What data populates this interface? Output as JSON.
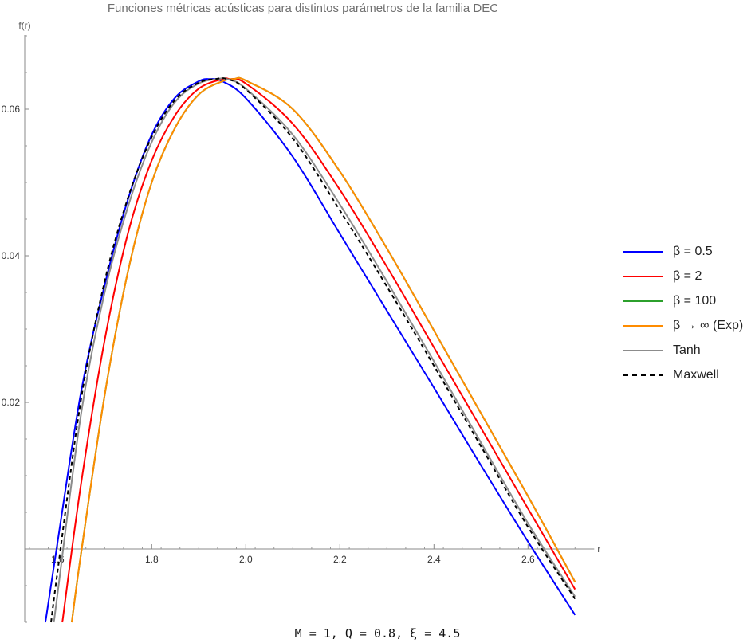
{
  "chart_data": {
    "type": "line",
    "title": "Funciones métricas acústicas para distintos parámetros de la familia DEC",
    "xlabel": "r",
    "ylabel": "f(r)",
    "xlim": [
      1.53,
      2.7
    ],
    "ylim": [
      -0.01,
      0.07
    ],
    "x_ticks": [
      1.6,
      1.8,
      2.0,
      2.2,
      2.4,
      2.6
    ],
    "x_tick_labels": [
      "1.6",
      "1.8",
      "2.0",
      "2.2",
      "2.4",
      "2.6"
    ],
    "y_ticks": [
      0.02,
      0.04,
      0.06
    ],
    "y_tick_labels": "0.02|0.04|0.06",
    "caption": "M = 1, Q = 0.8, ξ = 4.5",
    "series": [
      {
        "name": "β = 0.5",
        "color": "#0000ff",
        "dash": "",
        "width": 2,
        "x": [
          1.574,
          1.6,
          1.65,
          1.7,
          1.75,
          1.8,
          1.85,
          1.9,
          1.925,
          1.95,
          2.0,
          2.1,
          2.2,
          2.3,
          2.4,
          2.5,
          2.6,
          2.7
        ],
        "y": [
          -0.01,
          0.001,
          0.0215,
          0.036,
          0.0478,
          0.0565,
          0.0616,
          0.0638,
          0.0641,
          0.0638,
          0.0615,
          0.0535,
          0.043,
          0.0325,
          0.022,
          0.0114,
          0.001,
          -0.009
        ]
      },
      {
        "name": "β = 2",
        "color": "#ff0000",
        "dash": "",
        "width": 2,
        "x": [
          1.61,
          1.65,
          1.7,
          1.75,
          1.8,
          1.85,
          1.9,
          1.95,
          1.965,
          2.0,
          2.1,
          2.2,
          2.3,
          2.4,
          2.5,
          2.6,
          2.7
        ],
        "y": [
          -0.01,
          0.009,
          0.0285,
          0.0432,
          0.053,
          0.0592,
          0.0628,
          0.0641,
          0.0641,
          0.0635,
          0.058,
          0.049,
          0.0385,
          0.0275,
          0.0165,
          0.0055,
          -0.0055
        ]
      },
      {
        "name": "β = 100",
        "color": "#2ca02c",
        "dash": "",
        "width": 2,
        "x": [
          1.63,
          1.65,
          1.7,
          1.75,
          1.8,
          1.85,
          1.9,
          1.95,
          1.975,
          2.0,
          2.1,
          2.2,
          2.3,
          2.4,
          2.5,
          2.6,
          2.7
        ],
        "y": [
          -0.01,
          -0.0005,
          0.021,
          0.038,
          0.05,
          0.0575,
          0.062,
          0.0638,
          0.0641,
          0.0639,
          0.06,
          0.0515,
          0.041,
          0.0298,
          0.0185,
          0.0072,
          -0.0045
        ]
      },
      {
        "name": "β → ∞ (Exp)",
        "color": "#ff8c00",
        "dash": "",
        "width": 2,
        "x": [
          1.63,
          1.65,
          1.7,
          1.75,
          1.8,
          1.85,
          1.9,
          1.95,
          1.975,
          2.0,
          2.1,
          2.2,
          2.3,
          2.4,
          2.5,
          2.6,
          2.7
        ],
        "y": [
          -0.01,
          -0.0005,
          0.021,
          0.038,
          0.05,
          0.0575,
          0.062,
          0.0638,
          0.0641,
          0.0639,
          0.06,
          0.0515,
          0.041,
          0.0298,
          0.0185,
          0.0072,
          -0.0045
        ]
      },
      {
        "name": "Tanh",
        "color": "#8c8c8c",
        "dash": "",
        "width": 2,
        "x": [
          1.592,
          1.6,
          1.65,
          1.7,
          1.75,
          1.8,
          1.85,
          1.9,
          1.94,
          1.96,
          2.0,
          2.1,
          2.2,
          2.3,
          2.4,
          2.5,
          2.6,
          2.7
        ],
        "y": [
          -0.01,
          -0.006,
          0.0185,
          0.035,
          0.0468,
          0.0555,
          0.061,
          0.0635,
          0.0641,
          0.0641,
          0.0628,
          0.0565,
          0.047,
          0.0365,
          0.0256,
          0.0145,
          0.0035,
          -0.0065
        ]
      },
      {
        "name": "Maxwell",
        "color": "#000000",
        "dash": "5,4",
        "width": 2,
        "x": [
          1.586,
          1.6,
          1.65,
          1.7,
          1.75,
          1.8,
          1.85,
          1.9,
          1.935,
          1.96,
          2.0,
          2.1,
          2.2,
          2.3,
          2.4,
          2.5,
          2.6,
          2.7
        ],
        "y": [
          -0.01,
          -0.003,
          0.0205,
          0.0365,
          0.048,
          0.0562,
          0.0613,
          0.0636,
          0.0641,
          0.0641,
          0.0627,
          0.056,
          0.0462,
          0.0358,
          0.025,
          0.014,
          0.003,
          -0.0068
        ]
      }
    ]
  }
}
